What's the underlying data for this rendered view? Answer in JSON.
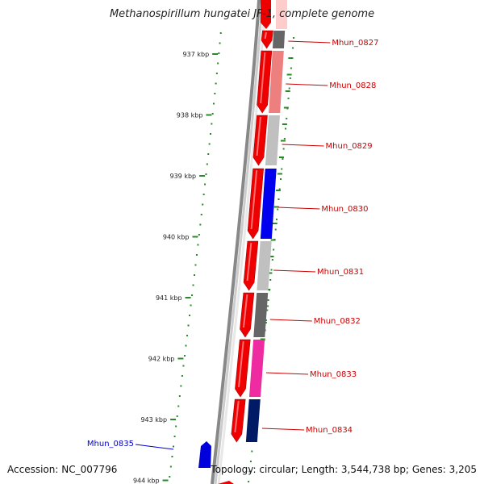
{
  "title": "Methanospirillum hungatei JF-1, complete genome",
  "accession_text": "Accession: NC_007796",
  "stats_text": "Topology: circular; Length: 3,544,738 bp; Genes: 3,205",
  "colors": {
    "tick": "#2a8a2a",
    "backbone": "#888888",
    "forward_gene": "#ee0000",
    "forward_gene_highlight": "#ff7070",
    "reverse_gene": "#0000dd",
    "label_forward": "#cc0000",
    "label_reverse": "#0000cc"
  },
  "ticks": [
    "937 kbp",
    "938 kbp",
    "939 kbp",
    "940 kbp",
    "941 kbp",
    "942 kbp",
    "943 kbp",
    "944 kbp"
  ],
  "genes": [
    {
      "label": "Mhun_0827",
      "strand": "forward",
      "cog_color": "#666666"
    },
    {
      "label": "Mhun_0828",
      "strand": "forward",
      "cog_color": "#ee7f7f"
    },
    {
      "label": "Mhun_0829",
      "strand": "forward",
      "cog_color": "#c0c0c0"
    },
    {
      "label": "Mhun_0830",
      "strand": "forward",
      "cog_color": "#0000ee"
    },
    {
      "label": "Mhun_0831",
      "strand": "forward",
      "cog_color": "#c0c0c0"
    },
    {
      "label": "Mhun_0832",
      "strand": "forward",
      "cog_color": "#666666"
    },
    {
      "label": "Mhun_0833",
      "strand": "forward",
      "cog_color": "#ee2ba0"
    },
    {
      "label": "Mhun_0834",
      "strand": "forward",
      "cog_color": "#001a66"
    },
    {
      "label": "Mhun_0835",
      "strand": "reverse",
      "cog_color": ""
    }
  ]
}
